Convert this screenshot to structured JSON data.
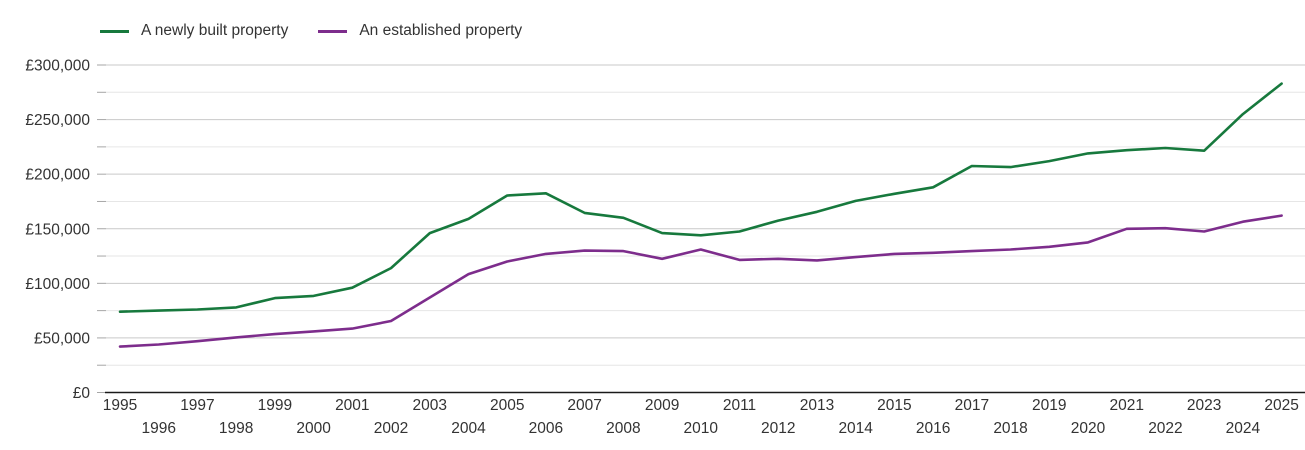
{
  "chart_data": {
    "type": "line",
    "title": "",
    "xlabel": "",
    "ylabel": "",
    "x": [
      1995,
      1996,
      1997,
      1998,
      1999,
      2000,
      2001,
      2002,
      2003,
      2004,
      2005,
      2006,
      2007,
      2008,
      2009,
      2010,
      2011,
      2012,
      2013,
      2014,
      2015,
      2016,
      2017,
      2018,
      2019,
      2020,
      2021,
      2022,
      2023,
      2024,
      2025
    ],
    "series": [
      {
        "name": "A newly built property",
        "color": "#17793d",
        "values": [
          74000,
          75000,
          76000,
          78000,
          86500,
          88500,
          96000,
          114000,
          146000,
          159000,
          180500,
          182500,
          164500,
          160000,
          146000,
          144000,
          147500,
          157500,
          165500,
          175500,
          182000,
          188000,
          207500,
          206500,
          212000,
          219000,
          222000,
          224000,
          221500,
          255000,
          283000
        ]
      },
      {
        "name": "An established property",
        "color": "#7d2d8c",
        "values": [
          42000,
          44000,
          47000,
          50500,
          53500,
          56000,
          58500,
          65500,
          87000,
          108500,
          120000,
          127000,
          130000,
          129500,
          122500,
          131000,
          121500,
          122500,
          121000,
          124000,
          127000,
          128000,
          129500,
          131000,
          133500,
          137500,
          150000,
          150500,
          147500,
          156500,
          162000
        ]
      }
    ],
    "ylim": [
      0,
      300000
    ],
    "y_major_step": 50000,
    "y_minor_step": 25000,
    "y_major_labels": [
      "£0",
      "£50,000",
      "£100,000",
      "£150,000",
      "£200,000",
      "£250,000",
      "£300,000"
    ],
    "grid": true,
    "legend_position": "top-left",
    "colors": {
      "grid_major": "#c9c9c9",
      "grid_minor": "#e6e6e6",
      "axis_line": "#1a1a1a",
      "tick_mark": "#a6a6a6",
      "tick_text": "#333333"
    }
  }
}
